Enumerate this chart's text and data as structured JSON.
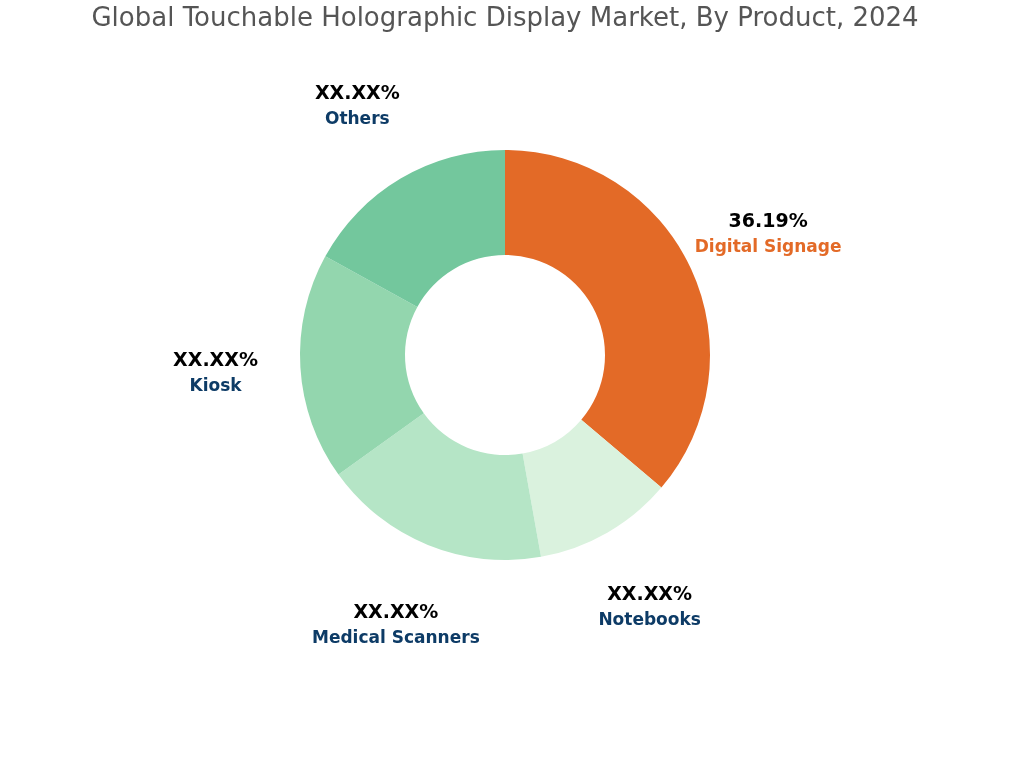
{
  "chart_data": {
    "type": "donut",
    "title": "Global Touchable Holographic Display Market, By Product, 2024",
    "categories": [
      "Digital Signage",
      "Notebooks",
      "Medical Scanners",
      "Kiosk",
      "Others"
    ],
    "values": [
      36.19,
      11.0,
      17.9,
      17.9,
      17.01
    ],
    "colors": [
      "#e36a27",
      "#daf2de",
      "#b5e5c6",
      "#93d6ae",
      "#73c79d"
    ],
    "value_labels": [
      "36.19%",
      "XX.XX%",
      "XX.XX%",
      "XX.XX%",
      "XX.XX%"
    ],
    "legend": false
  }
}
